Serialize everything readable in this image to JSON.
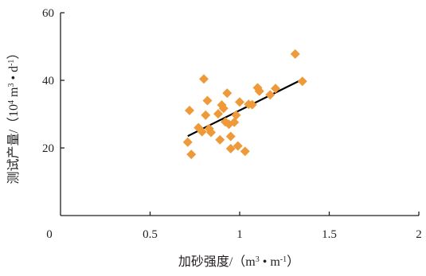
{
  "chart_data": {
    "type": "scatter",
    "title": "",
    "xlabel": "加砂强度/（m³·m⁻¹）",
    "ylabel": "测试产量/（10⁴m³·d⁻¹）",
    "xlabel_parts": {
      "prefix": "加砂强度/（m",
      "exp1": "3",
      "mid": " • m",
      "exp2": "-1",
      "suffix": "）"
    },
    "ylabel_parts": {
      "prefix": "测试产量/（10",
      "exp1": "4",
      "mid1": " m",
      "exp2": "3",
      "mid2": " • d",
      "exp3": "-1",
      "suffix": "）"
    },
    "xlim": [
      0,
      2
    ],
    "ylim": [
      0,
      60
    ],
    "x_ticks": [
      0,
      0.5,
      1,
      1.5,
      2
    ],
    "x_tick_labels": [
      "0",
      "0.5",
      "1",
      "1.5",
      "2"
    ],
    "y_ticks": [
      20,
      40,
      60
    ],
    "y_tick_labels": [
      "20",
      "40",
      "60"
    ],
    "grid": false,
    "marker": "diamond",
    "marker_color": "#ee9a3a",
    "line_color": "#000000",
    "axis_color": "#231f20",
    "points": [
      {
        "x": 0.71,
        "y": 21.7
      },
      {
        "x": 0.72,
        "y": 31.1
      },
      {
        "x": 0.73,
        "y": 18.1
      },
      {
        "x": 0.77,
        "y": 26.0
      },
      {
        "x": 0.79,
        "y": 24.8
      },
      {
        "x": 0.8,
        "y": 40.4
      },
      {
        "x": 0.81,
        "y": 29.7
      },
      {
        "x": 0.82,
        "y": 34.0
      },
      {
        "x": 0.83,
        "y": 25.7
      },
      {
        "x": 0.84,
        "y": 24.6
      },
      {
        "x": 0.88,
        "y": 30.1
      },
      {
        "x": 0.89,
        "y": 22.4
      },
      {
        "x": 0.9,
        "y": 32.7
      },
      {
        "x": 0.91,
        "y": 31.7
      },
      {
        "x": 0.92,
        "y": 27.7
      },
      {
        "x": 0.93,
        "y": 36.2
      },
      {
        "x": 0.94,
        "y": 27.0
      },
      {
        "x": 0.95,
        "y": 23.4
      },
      {
        "x": 0.95,
        "y": 19.8
      },
      {
        "x": 0.97,
        "y": 27.6
      },
      {
        "x": 0.98,
        "y": 29.7
      },
      {
        "x": 0.99,
        "y": 20.6
      },
      {
        "x": 1.0,
        "y": 33.6
      },
      {
        "x": 1.03,
        "y": 19.0
      },
      {
        "x": 1.05,
        "y": 32.9
      },
      {
        "x": 1.07,
        "y": 32.8
      },
      {
        "x": 1.1,
        "y": 37.8
      },
      {
        "x": 1.11,
        "y": 36.8
      },
      {
        "x": 1.17,
        "y": 35.7
      },
      {
        "x": 1.2,
        "y": 37.6
      },
      {
        "x": 1.31,
        "y": 47.8
      },
      {
        "x": 1.35,
        "y": 39.7
      }
    ],
    "trendline": {
      "x": [
        0.71,
        1.35
      ],
      "y": [
        23.5,
        40.3
      ]
    }
  }
}
